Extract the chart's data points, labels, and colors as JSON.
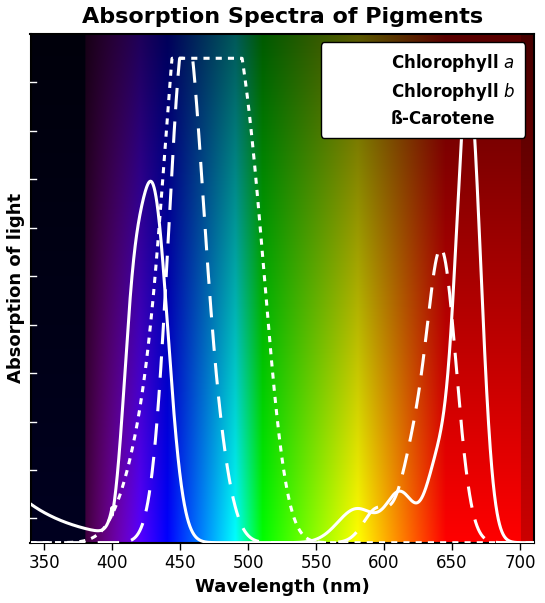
{
  "title": "Absorption Spectra of Pigments",
  "xlabel": "Wavelength (nm)",
  "ylabel": "Absorption of light",
  "xlim": [
    340,
    710
  ],
  "ylim": [
    0,
    1.05
  ],
  "xticks": [
    350,
    400,
    450,
    500,
    550,
    600,
    650,
    700
  ],
  "line_color": "#ffffff",
  "line_width": 2.2,
  "title_fontsize": 16,
  "label_fontsize": 13,
  "tick_fontsize": 12,
  "legend_fontsize": 12
}
